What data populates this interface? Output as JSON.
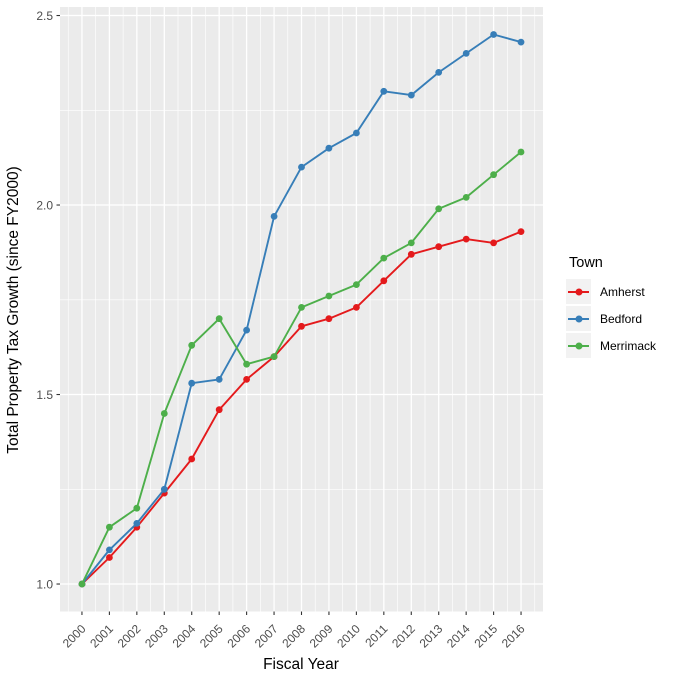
{
  "legend": {
    "title": "Town",
    "entries": [
      {
        "label": "Amherst",
        "color": "#E41A1C"
      },
      {
        "label": "Bedford",
        "color": "#377EB8"
      },
      {
        "label": "Merrimack",
        "color": "#4DAF4A"
      }
    ]
  },
  "chart_data": {
    "type": "line",
    "title": "",
    "xlabel": "Fiscal Year",
    "ylabel": "Total Property Tax Growth (since FY2000)",
    "x": [
      2000,
      2001,
      2002,
      2003,
      2004,
      2005,
      2006,
      2007,
      2008,
      2009,
      2010,
      2011,
      2012,
      2013,
      2014,
      2015,
      2016
    ],
    "series": [
      {
        "name": "Amherst",
        "color": "#E41A1C",
        "values": [
          1.0,
          1.07,
          1.15,
          1.24,
          1.33,
          1.46,
          1.54,
          1.6,
          1.68,
          1.7,
          1.73,
          1.8,
          1.87,
          1.89,
          1.91,
          1.9,
          1.93
        ]
      },
      {
        "name": "Bedford",
        "color": "#377EB8",
        "values": [
          1.0,
          1.09,
          1.16,
          1.25,
          1.53,
          1.54,
          1.67,
          1.97,
          2.1,
          2.15,
          2.19,
          2.3,
          2.29,
          2.35,
          2.4,
          2.45,
          2.43
        ]
      },
      {
        "name": "Merrimack",
        "color": "#4DAF4A",
        "values": [
          1.0,
          1.15,
          1.2,
          1.45,
          1.63,
          1.7,
          1.58,
          1.6,
          1.73,
          1.76,
          1.79,
          1.86,
          1.9,
          1.99,
          2.02,
          2.08,
          2.14
        ]
      }
    ],
    "xlim": [
      1999.2,
      2016.8
    ],
    "ylim": [
      0.9275,
      2.5225
    ],
    "x_ticks": [
      2000,
      2001,
      2002,
      2003,
      2004,
      2005,
      2006,
      2007,
      2008,
      2009,
      2010,
      2011,
      2012,
      2013,
      2014,
      2015,
      2016
    ],
    "x_tick_labels": [
      "2000",
      "2001",
      "2002",
      "2003",
      "2004",
      "2005",
      "2006",
      "2007",
      "2008",
      "2009",
      "2010",
      "2011",
      "2012",
      "2013",
      "2014",
      "2015",
      "2016"
    ],
    "x_minor_ticks": [
      1999.5,
      2000.5,
      2001.5,
      2002.5,
      2003.5,
      2004.5,
      2005.5,
      2006.5,
      2007.5,
      2008.5,
      2009.5,
      2010.5,
      2011.5,
      2012.5,
      2013.5,
      2014.5,
      2015.5,
      2016.5
    ],
    "y_ticks": [
      1.0,
      1.5,
      2.0,
      2.5
    ],
    "y_tick_labels": [
      "1.0",
      "1.5",
      "2.0",
      "2.5"
    ],
    "y_minor_ticks": [
      1.25,
      1.75,
      2.25
    ],
    "grid": true,
    "legend_position": "right",
    "legend_title": "Town",
    "colors": {
      "panel_bg": "#EBEBEB",
      "grid": "#FFFFFF",
      "tick_mark": "#333333",
      "tick_label": "#4D4D4D",
      "axis_title": "#000000",
      "legend_key_bg": "#F2F2F2",
      "background": "#FFFFFF"
    }
  }
}
